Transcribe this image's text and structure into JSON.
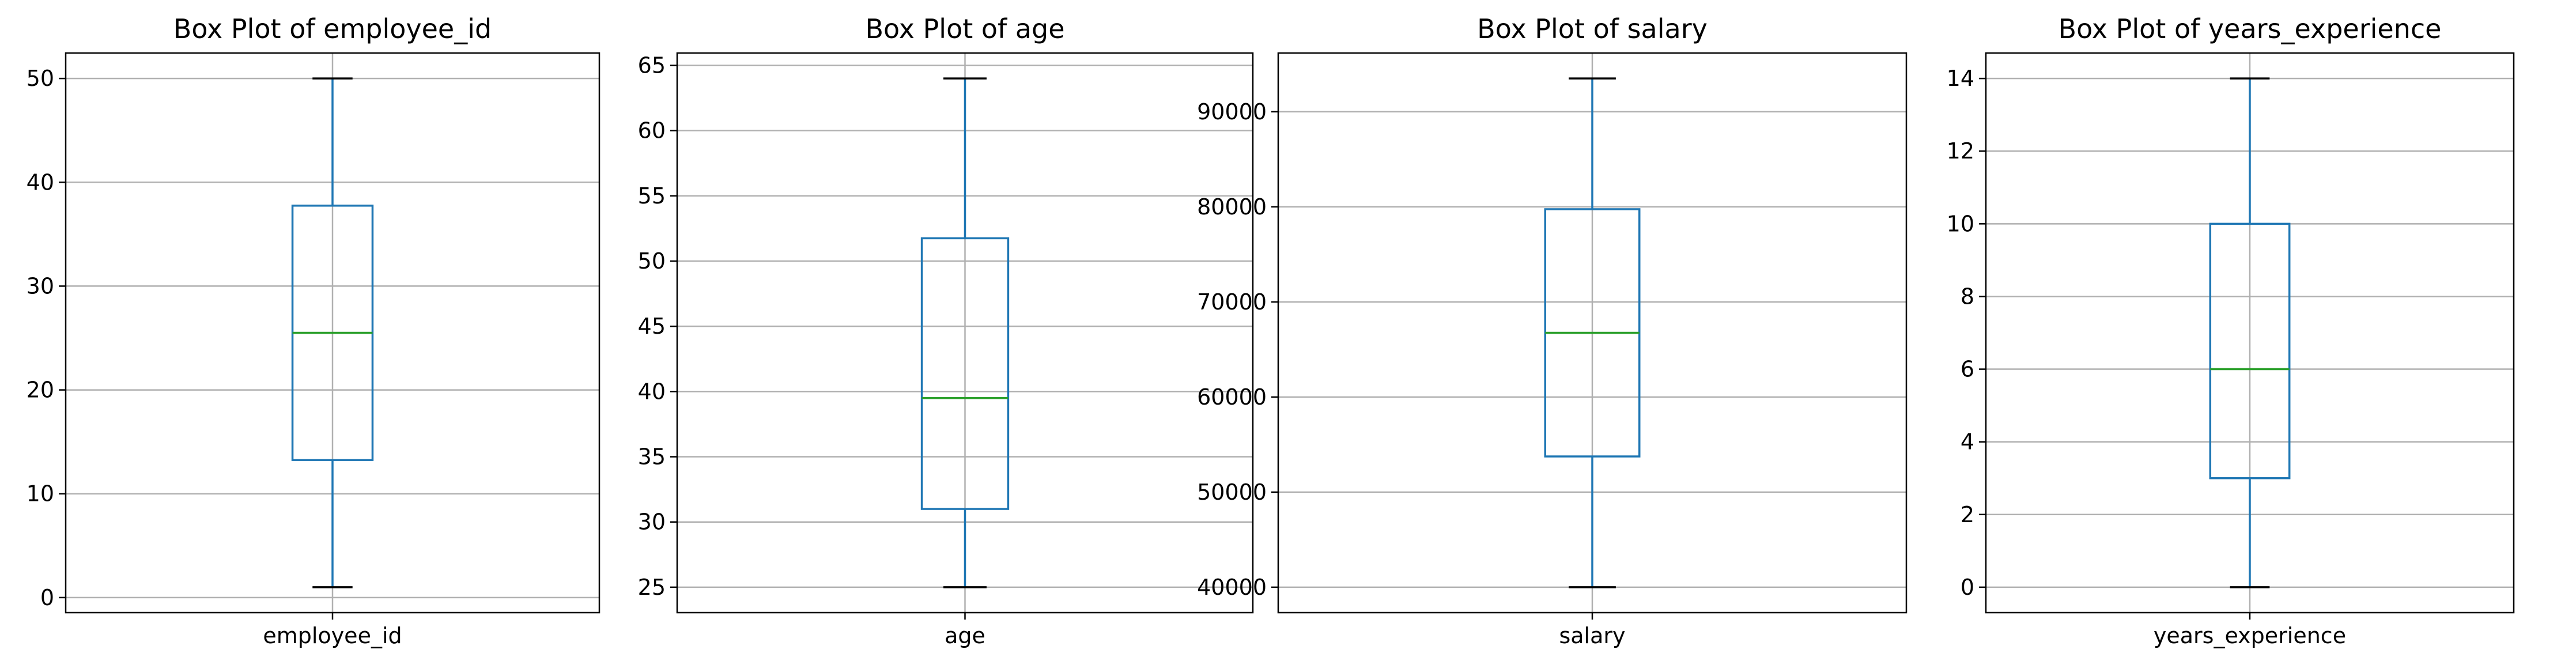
{
  "colors": {
    "box": "#1f77b4",
    "median": "#2ca02c",
    "cap": "#000000",
    "grid": "#b0b0b0"
  },
  "chart_data": [
    {
      "type": "box",
      "title": "Box Plot of employee_id",
      "categories": [
        "employee_id"
      ],
      "stats": {
        "whislo": 1,
        "q1": 13.25,
        "med": 25.5,
        "q3": 37.75,
        "whishi": 50
      },
      "ylim": [
        -1.45,
        52.45
      ],
      "yticks": [
        0,
        10,
        20,
        30,
        40,
        50
      ],
      "ytick_labels": [
        "0",
        "10",
        "20",
        "30",
        "40",
        "50"
      ],
      "grid": true
    },
    {
      "type": "box",
      "title": "Box Plot of age",
      "categories": [
        "age"
      ],
      "stats": {
        "whislo": 25,
        "q1": 31,
        "med": 39.5,
        "q3": 51.75,
        "whishi": 64
      },
      "ylim": [
        23.05,
        65.95
      ],
      "yticks": [
        25,
        30,
        35,
        40,
        45,
        50,
        55,
        60,
        65
      ],
      "ytick_labels": [
        "25",
        "30",
        "35",
        "40",
        "45",
        "50",
        "55",
        "60",
        "65"
      ],
      "grid": true
    },
    {
      "type": "box",
      "title": "Box Plot of salary",
      "categories": [
        "salary"
      ],
      "stats": {
        "whislo": 40000,
        "q1": 53750,
        "med": 66750,
        "q3": 79750,
        "whishi": 93500
      },
      "ylim": [
        37325,
        96175
      ],
      "yticks": [
        40000,
        50000,
        60000,
        70000,
        80000,
        90000
      ],
      "ytick_labels": [
        "40000",
        "50000",
        "60000",
        "70000",
        "80000",
        "90000"
      ],
      "grid": true
    },
    {
      "type": "box",
      "title": "Box Plot of years_experience",
      "categories": [
        "years_experience"
      ],
      "stats": {
        "whislo": 0,
        "q1": 3,
        "med": 6,
        "q3": 10,
        "whishi": 14
      },
      "ylim": [
        -0.7,
        14.7
      ],
      "yticks": [
        0,
        2,
        4,
        6,
        8,
        10,
        12,
        14
      ],
      "ytick_labels": [
        "0",
        "2",
        "4",
        "6",
        "8",
        "10",
        "12",
        "14"
      ],
      "grid": true
    }
  ]
}
